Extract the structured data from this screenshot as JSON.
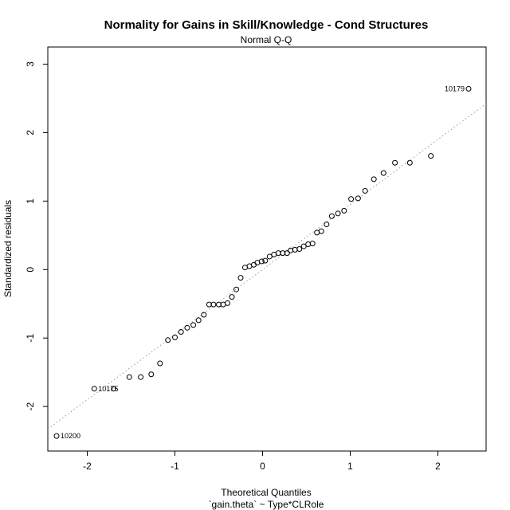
{
  "chart_data": {
    "type": "scatter",
    "title": "Normality for Gains in Skill/Knowledge - Cond Structures",
    "subtitle": "Normal Q-Q",
    "xlabel": "Theoretical Quantiles",
    "xlabel_sub": "`gain.theta` ~ Type*CLRole",
    "ylabel": "Standardized residuals",
    "xlim": [
      -2.45,
      2.55
    ],
    "ylim": [
      -2.65,
      3.25
    ],
    "xticks": [
      -2,
      -1,
      0,
      1,
      2
    ],
    "yticks": [
      -2,
      -1,
      0,
      1,
      2,
      3
    ],
    "grid": false,
    "reference_line": {
      "style": "dotted",
      "color": "#9a9a9a",
      "intercept": 0.0,
      "slope": 0.95
    },
    "points": [
      {
        "x": -2.35,
        "y": -2.43,
        "label": "10200"
      },
      {
        "x": -1.92,
        "y": -1.74,
        "label": "10175"
      },
      {
        "x": -1.7,
        "y": -1.74
      },
      {
        "x": -1.52,
        "y": -1.57
      },
      {
        "x": -1.39,
        "y": -1.57
      },
      {
        "x": -1.27,
        "y": -1.53
      },
      {
        "x": -1.17,
        "y": -1.37
      },
      {
        "x": -1.08,
        "y": -1.03
      },
      {
        "x": -1.0,
        "y": -0.99
      },
      {
        "x": -0.93,
        "y": -0.91
      },
      {
        "x": -0.86,
        "y": -0.85
      },
      {
        "x": -0.79,
        "y": -0.81
      },
      {
        "x": -0.73,
        "y": -0.74
      },
      {
        "x": -0.67,
        "y": -0.66
      },
      {
        "x": -0.61,
        "y": -0.51
      },
      {
        "x": -0.56,
        "y": -0.51
      },
      {
        "x": -0.5,
        "y": -0.51
      },
      {
        "x": -0.45,
        "y": -0.51
      },
      {
        "x": -0.4,
        "y": -0.49
      },
      {
        "x": -0.35,
        "y": -0.4
      },
      {
        "x": -0.3,
        "y": -0.29
      },
      {
        "x": -0.25,
        "y": -0.12
      },
      {
        "x": -0.2,
        "y": 0.03
      },
      {
        "x": -0.15,
        "y": 0.05
      },
      {
        "x": -0.1,
        "y": 0.07
      },
      {
        "x": -0.06,
        "y": 0.1
      },
      {
        "x": -0.01,
        "y": 0.12
      },
      {
        "x": 0.03,
        "y": 0.13
      },
      {
        "x": 0.08,
        "y": 0.19
      },
      {
        "x": 0.13,
        "y": 0.22
      },
      {
        "x": 0.18,
        "y": 0.24
      },
      {
        "x": 0.23,
        "y": 0.24
      },
      {
        "x": 0.28,
        "y": 0.24
      },
      {
        "x": 0.32,
        "y": 0.28
      },
      {
        "x": 0.37,
        "y": 0.29
      },
      {
        "x": 0.42,
        "y": 0.3
      },
      {
        "x": 0.47,
        "y": 0.34
      },
      {
        "x": 0.52,
        "y": 0.37
      },
      {
        "x": 0.57,
        "y": 0.38
      },
      {
        "x": 0.62,
        "y": 0.54
      },
      {
        "x": 0.67,
        "y": 0.56
      },
      {
        "x": 0.73,
        "y": 0.66
      },
      {
        "x": 0.79,
        "y": 0.78
      },
      {
        "x": 0.86,
        "y": 0.82
      },
      {
        "x": 0.93,
        "y": 0.86
      },
      {
        "x": 1.01,
        "y": 1.03
      },
      {
        "x": 1.09,
        "y": 1.04
      },
      {
        "x": 1.17,
        "y": 1.15
      },
      {
        "x": 1.27,
        "y": 1.32
      },
      {
        "x": 1.38,
        "y": 1.41
      },
      {
        "x": 1.51,
        "y": 1.56
      },
      {
        "x": 1.68,
        "y": 1.56
      },
      {
        "x": 1.92,
        "y": 1.66
      },
      {
        "x": 2.35,
        "y": 2.64,
        "label": "10179"
      }
    ]
  }
}
